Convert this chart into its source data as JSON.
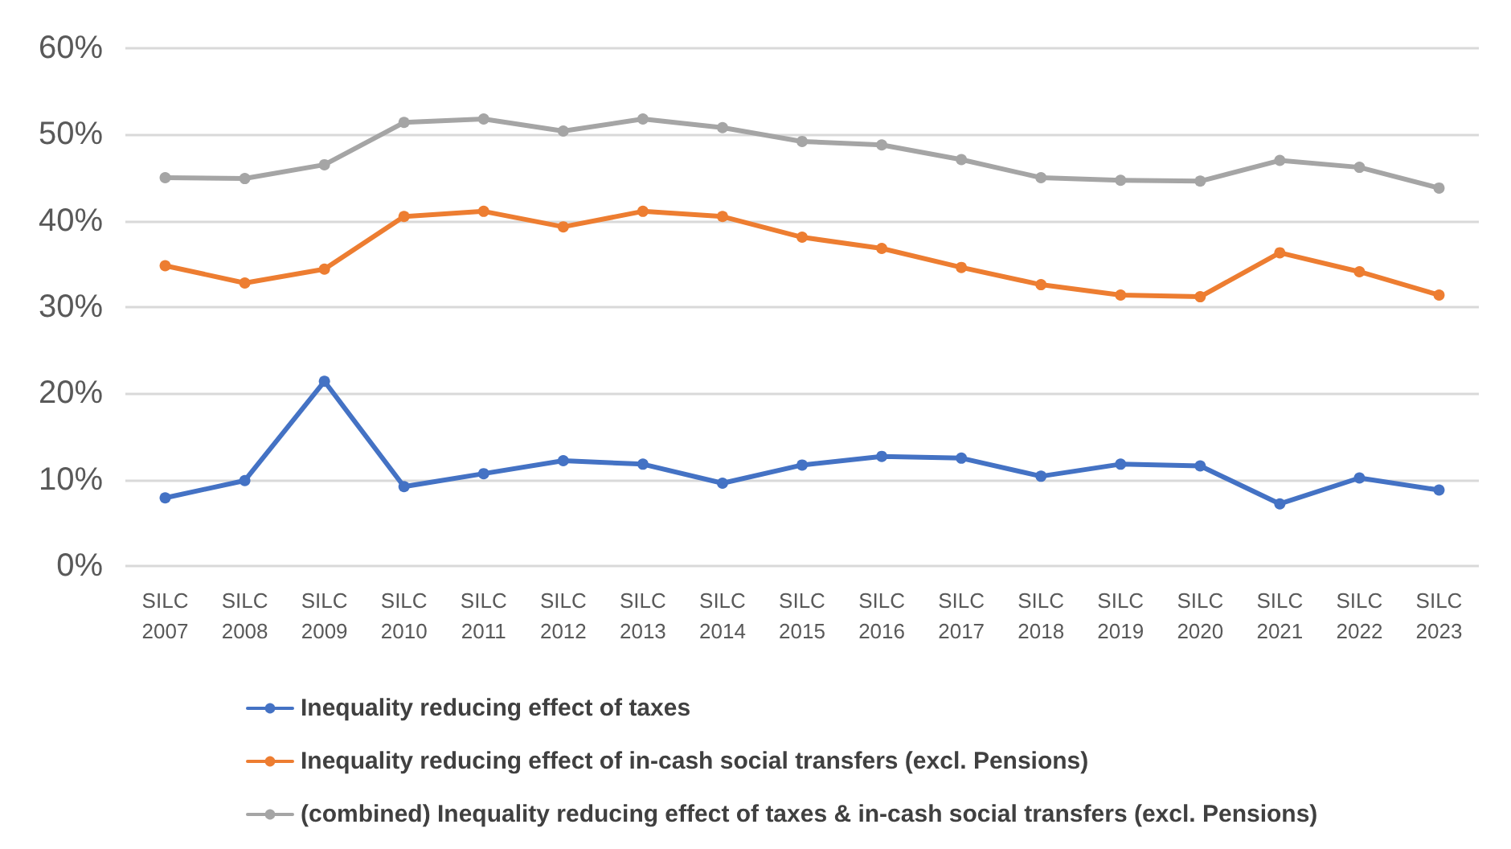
{
  "chart_data": {
    "type": "line",
    "categories": [
      "SILC\n2007",
      "SILC\n2008",
      "SILC\n2009",
      "SILC\n2010",
      "SILC\n2011",
      "SILC\n2012",
      "SILC\n2013",
      "SILC\n2014",
      "SILC\n2015",
      "SILC\n2016",
      "SILC\n2017",
      "SILC\n2018",
      "SILC\n2019",
      "SILC\n2020",
      "SILC\n2021",
      "SILC\n2022",
      "SILC\n2023"
    ],
    "series": [
      {
        "name": "Inequality reducing effect of taxes",
        "color": "#4472c4",
        "values": [
          7.9,
          9.9,
          21.4,
          9.2,
          10.7,
          12.2,
          11.8,
          9.6,
          11.7,
          12.7,
          12.5,
          10.4,
          11.8,
          11.6,
          7.2,
          10.2,
          8.8
        ]
      },
      {
        "name": "Inequality reducing effect of in-cash social transfers (excl. Pensions)",
        "color": "#ed7d31",
        "values": [
          34.8,
          32.8,
          34.4,
          40.5,
          41.1,
          39.3,
          41.1,
          40.5,
          38.1,
          36.8,
          34.6,
          32.6,
          31.4,
          31.2,
          36.3,
          34.1,
          31.4
        ]
      },
      {
        "name": "(combined) Inequality reducing effect of taxes & in-cash social transfers (excl. Pensions)",
        "color": "#a5a5a5",
        "values": [
          45.0,
          44.9,
          46.5,
          51.4,
          51.8,
          50.4,
          51.8,
          50.8,
          49.2,
          48.8,
          47.1,
          45.0,
          44.7,
          44.6,
          47.0,
          46.2,
          43.8
        ]
      }
    ],
    "ylim": [
      0,
      60
    ],
    "yticks": [
      {
        "value": 0,
        "label": "0%"
      },
      {
        "value": 10,
        "label": "10%"
      },
      {
        "value": 20,
        "label": "20%"
      },
      {
        "value": 30,
        "label": "30%"
      },
      {
        "value": 40,
        "label": "40%"
      },
      {
        "value": 50,
        "label": "50%"
      },
      {
        "value": 60,
        "label": "60%"
      }
    ],
    "grid": "y",
    "legend": "bottom left",
    "marker": "circle",
    "line_style": "solid"
  }
}
